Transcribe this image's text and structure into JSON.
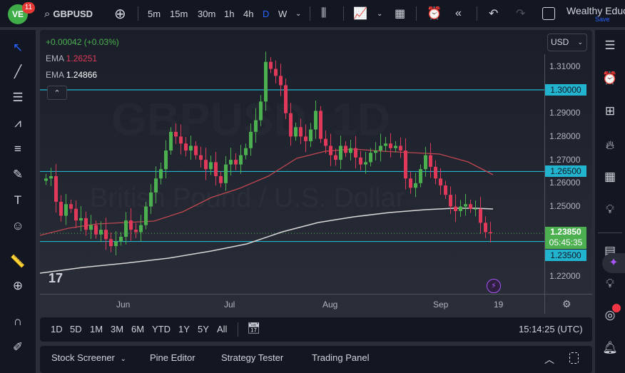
{
  "header": {
    "logo_badge": "11",
    "symbol": "GBPUSD",
    "intervals": [
      "5m",
      "15m",
      "30m",
      "1h",
      "4h",
      "D",
      "W"
    ],
    "active_interval": "D",
    "account_name": "Wealthy Educ",
    "save_label": "Save"
  },
  "legend": {
    "change": "+0.00042 (+0.03%)",
    "ema1_label": "EMA",
    "ema1_value": "1.26251",
    "ema2_label": "EMA",
    "ema2_value": "1.24866"
  },
  "watermark": {
    "title": "GBPUSD, 1D",
    "subtitle": "British Pound / U.S. Dollar"
  },
  "currency": "USD",
  "price_axis": {
    "ticks": [
      "1.31000",
      "1.29000",
      "1.28000",
      "1.27000",
      "1.26000",
      "1.25000",
      "1.22000"
    ],
    "levels": [
      "1.30000",
      "1.26500",
      "1.23500"
    ],
    "current_price": "1.23850",
    "countdown": "05:45:35"
  },
  "time_axis": {
    "labels": [
      "Jun",
      "Jul",
      "Aug",
      "Sep",
      "19"
    ]
  },
  "range_bar": {
    "ranges": [
      "1D",
      "5D",
      "1M",
      "3M",
      "6M",
      "YTD",
      "1Y",
      "5Y",
      "All"
    ],
    "clock": "15:14:25 (UTC)"
  },
  "bottom_panel": {
    "tabs": [
      "Stock Screener",
      "Pine Editor",
      "Strategy Tester",
      "Trading Panel"
    ]
  },
  "colors": {
    "up": "#4caf50",
    "down": "#e0395a",
    "level": "#22b4cf",
    "ema_fast": "#c0474f",
    "ema_slow": "#d8d8d8"
  },
  "chart_data": {
    "type": "candlestick",
    "closes": [
      1.262,
      1.263,
      1.252,
      1.246,
      1.251,
      1.249,
      1.244,
      1.245,
      1.24,
      1.242,
      1.238,
      1.24,
      1.236,
      1.233,
      1.235,
      1.237,
      1.244,
      1.24,
      1.239,
      1.242,
      1.25,
      1.256,
      1.262,
      1.266,
      1.274,
      1.282,
      1.28,
      1.277,
      1.274,
      1.276,
      1.272,
      1.27,
      1.266,
      1.269,
      1.263,
      1.26,
      1.268,
      1.27,
      1.268,
      1.272,
      1.275,
      1.282,
      1.287,
      1.295,
      1.312,
      1.309,
      1.306,
      1.302,
      1.29,
      1.28,
      1.284,
      1.28,
      1.278,
      1.283,
      1.291,
      1.279,
      1.276,
      1.272,
      1.27,
      1.276,
      1.273,
      1.275,
      1.271,
      1.268,
      1.269,
      1.273,
      1.274,
      1.276,
      1.277,
      1.275,
      1.276,
      1.274,
      1.262,
      1.258,
      1.26,
      1.266,
      1.272,
      1.267,
      1.262,
      1.259,
      1.255,
      1.25,
      1.248,
      1.25,
      1.251,
      1.249,
      1.249,
      1.243,
      1.239,
      1.2385
    ],
    "horizontal_levels": [
      1.3,
      1.265,
      1.235
    ]
  }
}
